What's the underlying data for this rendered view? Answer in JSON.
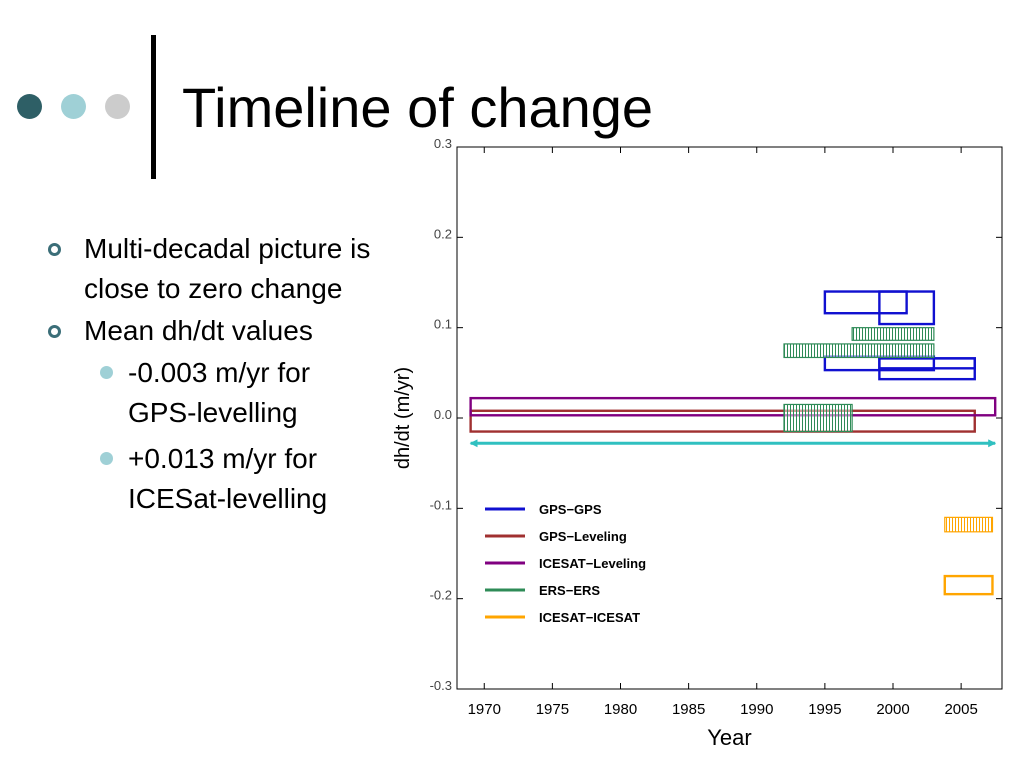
{
  "slide": {
    "title": "Timeline of change",
    "dot_colors": [
      "#2e5f66",
      "#9fd0d6",
      "#cccccc"
    ],
    "bullets": [
      {
        "text": "Multi-decadal picture is close to zero change",
        "level": 1
      },
      {
        "text": "Mean dh/dt values",
        "level": 1
      },
      {
        "text": "-0.003 m/yr for GPS-levelling",
        "level": 2
      },
      {
        "text": "+0.013 m/yr for ICESat-levelling",
        "level": 2
      }
    ]
  },
  "chart_data": {
    "type": "bar",
    "xlabel": "Year",
    "ylabel": "dh/dt (m/yr)",
    "xlim": [
      1968,
      2008
    ],
    "ylim": [
      -0.3,
      0.3
    ],
    "x_ticks": [
      "1970",
      "1975",
      "1980",
      "1985",
      "1990",
      "1995",
      "2000",
      "2005"
    ],
    "y_ticks": [
      "0.3",
      "0.2",
      "0.1",
      "0.0",
      "-0.1",
      "-0.2",
      "-0.3"
    ],
    "legend_position": "lower-left",
    "series": [
      {
        "name": "GPS−GPS",
        "color": "#1010d0",
        "style": "outline",
        "boxes": [
          {
            "x": [
              1995,
              2001
            ],
            "y": [
              0.116,
              0.14
            ]
          },
          {
            "x": [
              1999,
              2003
            ],
            "y": [
              0.104,
              0.14
            ]
          },
          {
            "x": [
              1995,
              2003
            ],
            "y": [
              0.053,
              0.068
            ]
          },
          {
            "x": [
              1999,
              2006
            ],
            "y": [
              0.043,
              0.066
            ]
          },
          {
            "x": [
              1999,
              2006
            ],
            "y": [
              0.055,
              0.066
            ]
          }
        ]
      },
      {
        "name": "GPS−Leveling",
        "color": "#a03030",
        "style": "outline",
        "boxes": [
          {
            "x": [
              1969,
              2006
            ],
            "y": [
              -0.015,
              0.008
            ]
          }
        ]
      },
      {
        "name": "ICESAT−Leveling",
        "color": "#800080",
        "style": "outline",
        "boxes": [
          {
            "x": [
              1969,
              2007.5
            ],
            "y": [
              0.003,
              0.022
            ]
          }
        ]
      },
      {
        "name": "ERS−ERS",
        "color": "#2e8b57",
        "style": "hatched",
        "boxes": [
          {
            "x": [
              1997,
              2003
            ],
            "y": [
              0.086,
              0.1
            ]
          },
          {
            "x": [
              1992,
              2003
            ],
            "y": [
              0.067,
              0.082
            ]
          },
          {
            "x": [
              1992,
              1997
            ],
            "y": [
              -0.015,
              0.015
            ]
          }
        ]
      },
      {
        "name": "ICESAT−ICESAT",
        "color": "#ffa500",
        "style": "mixed",
        "boxes": [
          {
            "x": [
              2003.8,
              2007.3
            ],
            "y": [
              -0.126,
              -0.11
            ],
            "fill": "hatched"
          },
          {
            "x": [
              2003.8,
              2007.3
            ],
            "y": [
              -0.195,
              -0.175
            ],
            "fill": "outline"
          }
        ]
      }
    ],
    "arrow": {
      "x": [
        1969,
        2007.5
      ],
      "y": -0.028,
      "color": "#30c0c0"
    }
  }
}
